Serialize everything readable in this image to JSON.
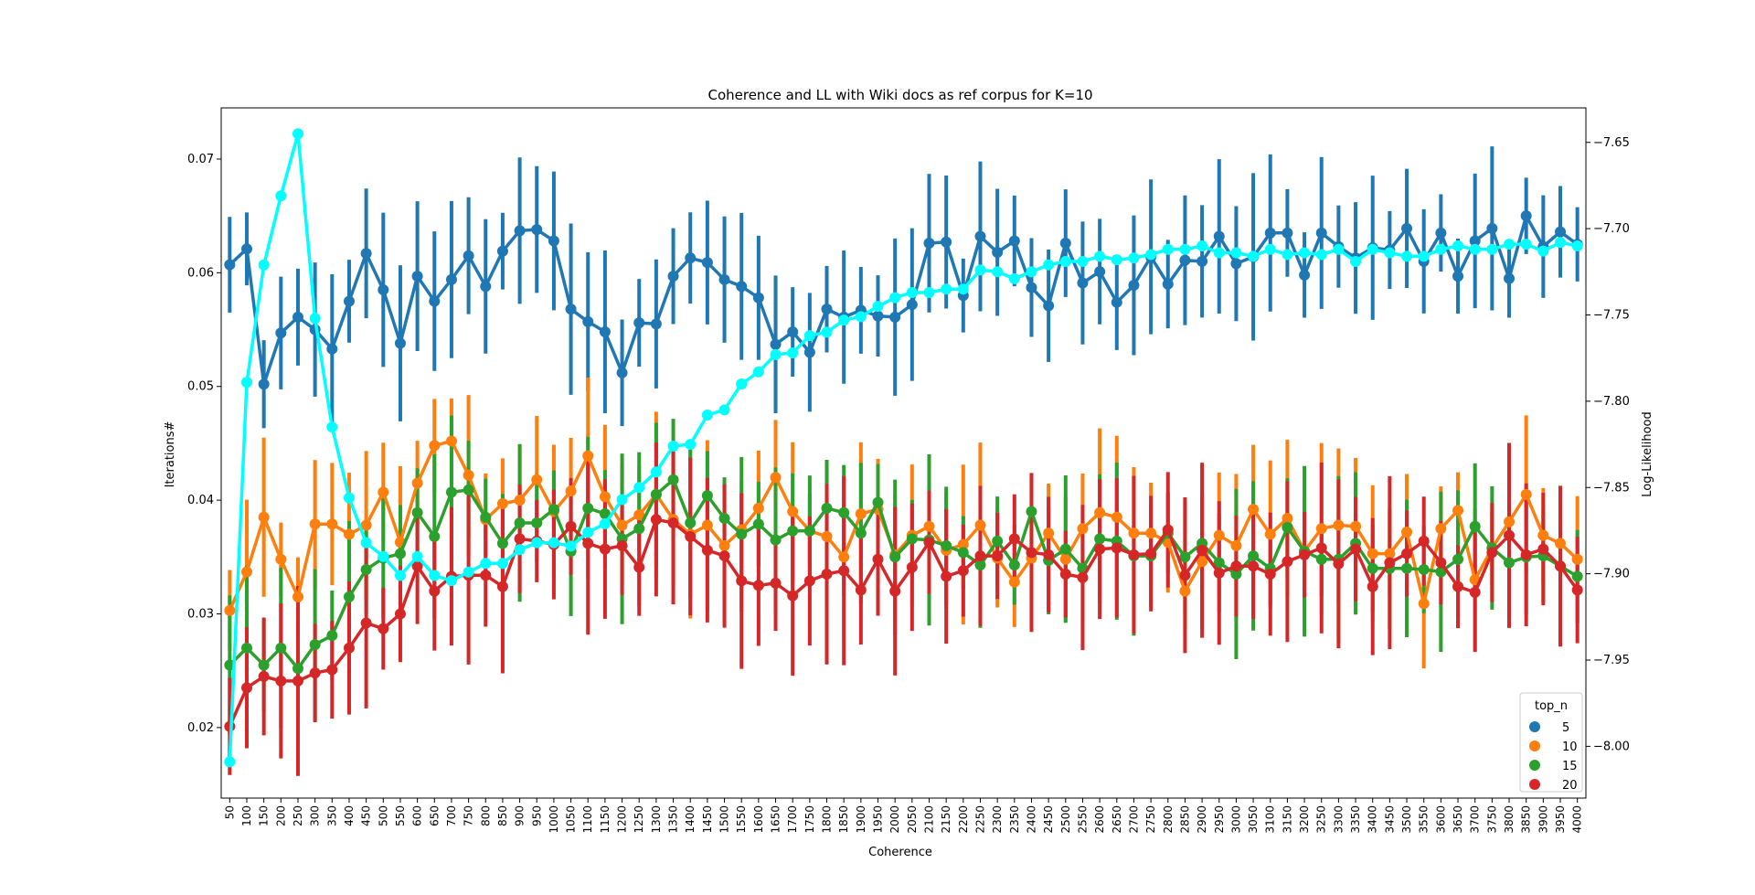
{
  "chart_data": {
    "type": "line",
    "title": "Coherence and LL with Wiki docs as ref corpus for K=10",
    "xlabel": "Coherence",
    "ylabel": "Iterations#",
    "y2label": "Log-Likelihood",
    "ylim": [
      0.0138,
      0.0745
    ],
    "y2lim": [
      -8.03,
      -7.63
    ],
    "yticks": [
      0.02,
      0.03,
      0.04,
      0.05,
      0.06,
      0.07
    ],
    "y2ticks": [
      -8.0,
      -7.95,
      -7.9,
      -7.85,
      -7.8,
      -7.75,
      -7.7,
      -7.65
    ],
    "grid": false,
    "legend": {
      "title": "top_n",
      "position": "bottom-right"
    },
    "x": [
      "50",
      "100",
      "150",
      "200",
      "250",
      "300",
      "350",
      "400",
      "450",
      "500",
      "550",
      "600",
      "650",
      "700",
      "750",
      "800",
      "850",
      "900",
      "950",
      "1000",
      "1050",
      "1100",
      "1150",
      "1200",
      "1250",
      "1300",
      "1350",
      "1400",
      "1450",
      "1500",
      "1550",
      "1600",
      "1650",
      "1700",
      "1750",
      "1800",
      "1850",
      "1900",
      "1950",
      "2000",
      "2050",
      "2100",
      "2150",
      "2200",
      "2250",
      "2300",
      "2350",
      "2400",
      "2450",
      "2500",
      "2550",
      "2600",
      "2650",
      "2700",
      "2750",
      "2800",
      "2850",
      "2900",
      "2950",
      "3000",
      "3050",
      "3100",
      "3150",
      "3200",
      "3250",
      "3300",
      "3350",
      "3400",
      "3450",
      "3500",
      "3550",
      "3600",
      "3650",
      "3700",
      "3750",
      "3800",
      "3850",
      "3900",
      "3950",
      "4000"
    ],
    "series": [
      {
        "name": "5",
        "color": "#1f77b4",
        "axis": "left",
        "error_half": 0.0058,
        "values": [
          0.0607,
          0.0621,
          0.0502,
          0.0547,
          0.0561,
          0.055,
          0.0533,
          0.0575,
          0.0617,
          0.0585,
          0.0538,
          0.0597,
          0.0575,
          0.0594,
          0.0615,
          0.0588,
          0.0619,
          0.0637,
          0.0638,
          0.0628,
          0.0568,
          0.0557,
          0.0548,
          0.0512,
          0.0556,
          0.0555,
          0.0597,
          0.0613,
          0.0609,
          0.0594,
          0.0588,
          0.0578,
          0.0537,
          0.0548,
          0.053,
          0.0568,
          0.0561,
          0.0567,
          0.0562,
          0.0561,
          0.0572,
          0.0626,
          0.0627,
          0.058,
          0.0632,
          0.0618,
          0.0628,
          0.0587,
          0.0571,
          0.0626,
          0.0591,
          0.0601,
          0.0574,
          0.0589,
          0.0614,
          0.059,
          0.0611,
          0.061,
          0.0632,
          0.0608,
          0.0614,
          0.0635,
          0.0635,
          0.0598,
          0.0635,
          0.0623,
          0.0613,
          0.0622,
          0.062,
          0.0639,
          0.061,
          0.0635,
          0.0597,
          0.0628,
          0.0639,
          0.0595,
          0.065,
          0.0623,
          0.0636,
          0.0625
        ]
      },
      {
        "name": "10",
        "color": "#ff7f0e",
        "axis": "left",
        "error_half": 0.0058,
        "values": [
          0.0303,
          0.0337,
          0.0385,
          0.0348,
          0.0315,
          0.0379,
          0.0379,
          0.037,
          0.0378,
          0.0407,
          0.0363,
          0.0415,
          0.0448,
          0.0452,
          0.0422,
          0.0383,
          0.0397,
          0.04,
          0.0418,
          0.039,
          0.0408,
          0.0439,
          0.0403,
          0.0378,
          0.0387,
          0.0405,
          0.0383,
          0.037,
          0.0378,
          0.036,
          0.0374,
          0.0393,
          0.042,
          0.039,
          0.0373,
          0.0368,
          0.035,
          0.0388,
          0.0392,
          0.0352,
          0.0369,
          0.0377,
          0.0356,
          0.0361,
          0.0378,
          0.0349,
          0.0328,
          0.0349,
          0.0371,
          0.0348,
          0.0375,
          0.0389,
          0.0385,
          0.0371,
          0.0371,
          0.0363,
          0.032,
          0.0346,
          0.0369,
          0.036,
          0.0392,
          0.037,
          0.0384,
          0.0355,
          0.0375,
          0.0378,
          0.0377,
          0.0353,
          0.0353,
          0.0372,
          0.0309,
          0.0375,
          0.0391,
          0.033,
          0.0358,
          0.0381,
          0.0405,
          0.0369,
          0.0362,
          0.0348
        ]
      },
      {
        "name": "15",
        "color": "#2ca02c",
        "axis": "left",
        "error_half": 0.0058,
        "values": [
          0.0255,
          0.027,
          0.0255,
          0.027,
          0.0252,
          0.0273,
          0.0281,
          0.0315,
          0.0339,
          0.0349,
          0.0353,
          0.0389,
          0.0368,
          0.0407,
          0.0409,
          0.0385,
          0.0362,
          0.038,
          0.038,
          0.0392,
          0.0355,
          0.0393,
          0.0388,
          0.0366,
          0.0375,
          0.0405,
          0.0418,
          0.038,
          0.0404,
          0.0384,
          0.037,
          0.0379,
          0.0365,
          0.0373,
          0.0373,
          0.0393,
          0.0389,
          0.0371,
          0.0398,
          0.035,
          0.0366,
          0.0365,
          0.036,
          0.0354,
          0.0343,
          0.0364,
          0.0343,
          0.039,
          0.0347,
          0.0357,
          0.034,
          0.0366,
          0.0364,
          0.0351,
          0.0351,
          0.0371,
          0.035,
          0.0362,
          0.0345,
          0.0335,
          0.0351,
          0.034,
          0.0376,
          0.0355,
          0.0348,
          0.0348,
          0.0362,
          0.034,
          0.034,
          0.034,
          0.0339,
          0.0337,
          0.0348,
          0.0377,
          0.0358,
          0.0345,
          0.035,
          0.0351,
          0.0342,
          0.0333
        ]
      },
      {
        "name": "20",
        "color": "#d62728",
        "axis": "left",
        "error_half": 0.0065,
        "values": [
          0.0201,
          0.0235,
          0.0245,
          0.0241,
          0.0241,
          0.0248,
          0.0251,
          0.027,
          0.0292,
          0.0287,
          0.03,
          0.0342,
          0.032,
          0.0333,
          0.0334,
          0.0334,
          0.0324,
          0.0366,
          0.0364,
          0.0361,
          0.0377,
          0.0362,
          0.0357,
          0.036,
          0.0341,
          0.0383,
          0.038,
          0.0368,
          0.0356,
          0.0351,
          0.0329,
          0.0325,
          0.0327,
          0.0316,
          0.0329,
          0.0335,
          0.0338,
          0.0321,
          0.0348,
          0.032,
          0.0341,
          0.0363,
          0.0333,
          0.0338,
          0.0351,
          0.0351,
          0.0366,
          0.0354,
          0.0352,
          0.0335,
          0.0332,
          0.0357,
          0.0358,
          0.0352,
          0.0353,
          0.0374,
          0.0334,
          0.0356,
          0.0336,
          0.0342,
          0.0342,
          0.0335,
          0.0346,
          0.0352,
          0.0358,
          0.0344,
          0.0357,
          0.0324,
          0.0345,
          0.0353,
          0.0364,
          0.0345,
          0.0324,
          0.0319,
          0.0354,
          0.0369,
          0.0352,
          0.0357,
          0.0342,
          0.0321
        ]
      },
      {
        "name": "Log-Likelihood",
        "color": "#00ffff",
        "axis": "right",
        "values": [
          -8.009,
          -7.789,
          -7.721,
          -7.681,
          -7.645,
          -7.752,
          -7.815,
          -7.856,
          -7.882,
          -7.89,
          -7.901,
          -7.89,
          -7.901,
          -7.904,
          -7.899,
          -7.894,
          -7.894,
          -7.886,
          -7.882,
          -7.882,
          -7.884,
          -7.876,
          -7.871,
          -7.857,
          -7.85,
          -7.841,
          -7.826,
          -7.825,
          -7.808,
          -7.805,
          -7.79,
          -7.783,
          -7.773,
          -7.772,
          -7.762,
          -7.76,
          -7.753,
          -7.751,
          -7.745,
          -7.74,
          -7.737,
          -7.737,
          -7.735,
          -7.735,
          -7.724,
          -7.725,
          -7.729,
          -7.725,
          -7.721,
          -7.719,
          -7.719,
          -7.716,
          -7.718,
          -7.717,
          -7.715,
          -7.712,
          -7.712,
          -7.71,
          -7.714,
          -7.714,
          -7.716,
          -7.712,
          -7.715,
          -7.714,
          -7.715,
          -7.712,
          -7.719,
          -7.712,
          -7.714,
          -7.716,
          -7.716,
          -7.712,
          -7.71,
          -7.712,
          -7.712,
          -7.709,
          -7.709,
          -7.713,
          -7.708,
          -7.71
        ]
      }
    ]
  }
}
